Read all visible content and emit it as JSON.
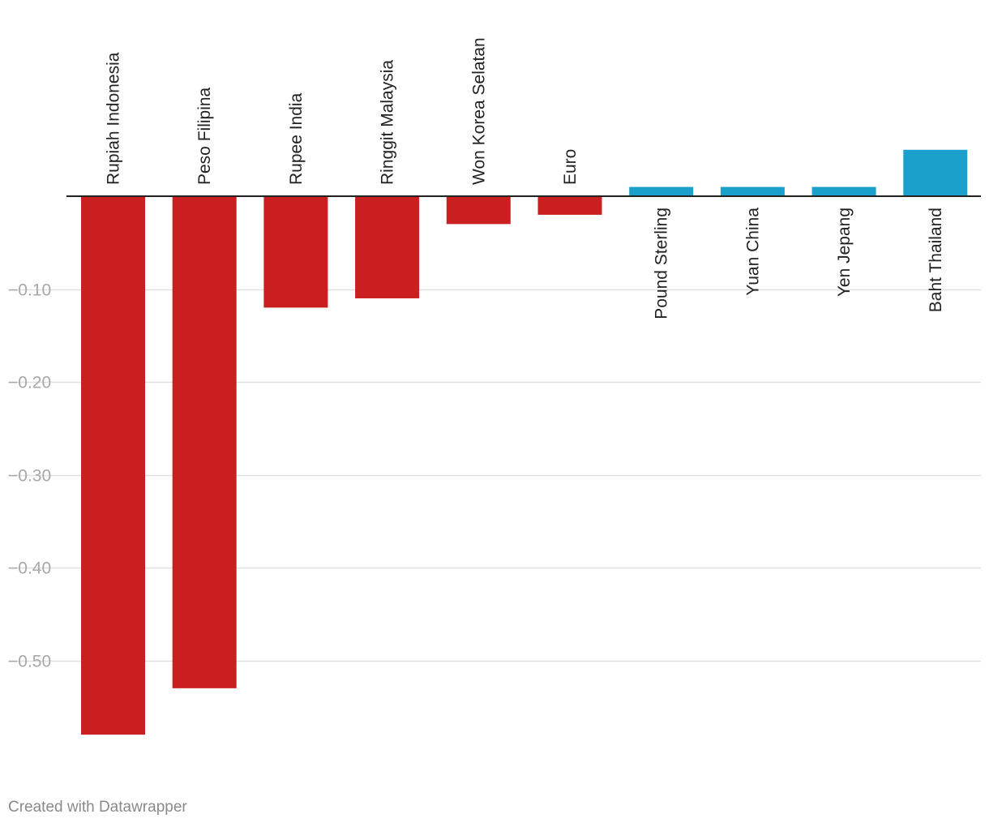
{
  "chart_data": {
    "type": "bar",
    "title": "",
    "xlabel": "",
    "ylabel": "",
    "categories": [
      "Rupiah Indonesia",
      "Peso Filipina",
      "Rupee India",
      "Ringgit Malaysia",
      "Won Korea Selatan",
      "Euro",
      "Pound Sterling",
      "Yuan China",
      "Yen Jepang",
      "Baht Thailand"
    ],
    "values": [
      -0.58,
      -0.53,
      -0.12,
      -0.11,
      -0.03,
      -0.02,
      0.01,
      0.01,
      0.01,
      0.05
    ],
    "ylim": [
      -0.58,
      0.05
    ],
    "yticks": [
      -0.1,
      -0.2,
      -0.3,
      -0.4,
      -0.5
    ],
    "ytick_labels": [
      "−0.10",
      "−0.20",
      "−0.30",
      "−0.40",
      "−0.50"
    ],
    "grid": true,
    "colors": {
      "negative": "#c91f20",
      "positive": "#1ba0cc",
      "gridline": "#e0e0e0",
      "baseline": "#222222"
    }
  },
  "footer": {
    "credit": "Created with Datawrapper"
  }
}
